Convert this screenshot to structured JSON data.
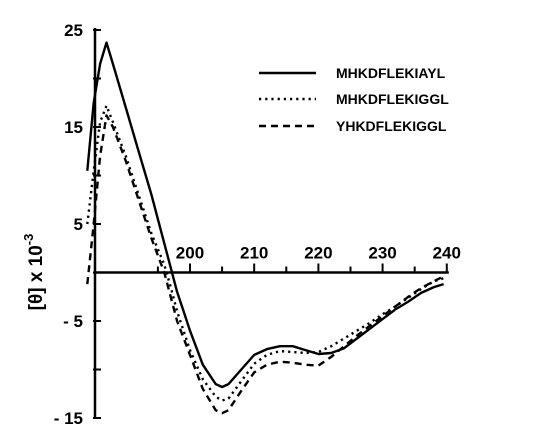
{
  "chart_data": {
    "type": "line",
    "title": "",
    "xlabel": "",
    "ylabel": "[θ] x 10",
    "ylabel_exponent": "-3",
    "xlim": [
      183,
      240
    ],
    "ylim": [
      -15,
      25
    ],
    "x_ticks": [
      200,
      210,
      220,
      230,
      240
    ],
    "x_tick_labels": [
      "200",
      "210",
      "220",
      "230",
      "240"
    ],
    "y_ticks": [
      25,
      15,
      5,
      -5,
      -15
    ],
    "y_tick_labels": [
      "25",
      "15",
      "5",
      "- 5",
      "- 15"
    ],
    "grid": false,
    "legend_position": "top-right",
    "series": [
      {
        "name": "MHKDFLEKIAYL",
        "style": "solid",
        "color": "#000000",
        "points": [
          [
            184.0,
            10.5
          ],
          [
            185.0,
            17.5
          ],
          [
            186.0,
            21.5
          ],
          [
            187.0,
            23.7
          ],
          [
            188.0,
            21.5
          ],
          [
            190.0,
            17.0
          ],
          [
            192.0,
            12.5
          ],
          [
            194.0,
            8.0
          ],
          [
            196.0,
            3.0
          ],
          [
            197.0,
            0.5
          ],
          [
            198.0,
            -2.0
          ],
          [
            199.0,
            -4.0
          ],
          [
            200.0,
            -6.0
          ],
          [
            202.0,
            -9.5
          ],
          [
            204.0,
            -11.5
          ],
          [
            205.0,
            -11.8
          ],
          [
            206.0,
            -11.5
          ],
          [
            208.0,
            -10.0
          ],
          [
            210.0,
            -8.5
          ],
          [
            212.0,
            -7.9
          ],
          [
            214.0,
            -7.6
          ],
          [
            216.0,
            -7.6
          ],
          [
            218.0,
            -8.0
          ],
          [
            220.0,
            -8.4
          ],
          [
            222.0,
            -8.3
          ],
          [
            224.0,
            -7.8
          ],
          [
            226.0,
            -6.8
          ],
          [
            228.0,
            -5.8
          ],
          [
            230.0,
            -4.8
          ],
          [
            232.0,
            -3.8
          ],
          [
            234.0,
            -3.0
          ],
          [
            236.0,
            -2.1
          ],
          [
            238.0,
            -1.5
          ],
          [
            239.5,
            -1.2
          ]
        ]
      },
      {
        "name": "MHKDFLEKIGGL",
        "style": "dotted",
        "color": "#000000",
        "points": [
          [
            184.0,
            5.0
          ],
          [
            185.0,
            10.5
          ],
          [
            186.0,
            15.5
          ],
          [
            187.0,
            17.2
          ],
          [
            188.0,
            15.5
          ],
          [
            190.0,
            12.0
          ],
          [
            192.0,
            8.0
          ],
          [
            194.0,
            4.0
          ],
          [
            196.0,
            0.8
          ],
          [
            197.0,
            -1.5
          ],
          [
            198.0,
            -4.0
          ],
          [
            200.0,
            -8.0
          ],
          [
            202.0,
            -11.0
          ],
          [
            204.0,
            -12.8
          ],
          [
            205.0,
            -13.2
          ],
          [
            206.0,
            -13.0
          ],
          [
            208.0,
            -11.2
          ],
          [
            210.0,
            -9.4
          ],
          [
            212.0,
            -8.5
          ],
          [
            214.0,
            -8.1
          ],
          [
            216.0,
            -8.2
          ],
          [
            218.0,
            -8.3
          ],
          [
            220.0,
            -8.2
          ],
          [
            222.0,
            -7.6
          ],
          [
            224.0,
            -6.8
          ],
          [
            226.0,
            -6.0
          ],
          [
            228.0,
            -5.2
          ],
          [
            230.0,
            -4.3
          ],
          [
            232.0,
            -3.5
          ],
          [
            234.0,
            -2.6
          ],
          [
            236.0,
            -1.7
          ],
          [
            238.0,
            -0.9
          ],
          [
            239.5,
            -0.6
          ]
        ]
      },
      {
        "name": "YHKDFLEKIGGL",
        "style": "dashed",
        "color": "#000000",
        "points": [
          [
            184.0,
            -1.2
          ],
          [
            185.0,
            5.0
          ],
          [
            186.0,
            12.0
          ],
          [
            187.0,
            16.2
          ],
          [
            188.0,
            15.0
          ],
          [
            190.0,
            11.5
          ],
          [
            192.0,
            7.5
          ],
          [
            194.0,
            3.5
          ],
          [
            196.0,
            0.0
          ],
          [
            197.0,
            -2.5
          ],
          [
            198.0,
            -5.0
          ],
          [
            200.0,
            -8.5
          ],
          [
            202.0,
            -12.0
          ],
          [
            204.0,
            -14.2
          ],
          [
            205.0,
            -14.5
          ],
          [
            206.0,
            -14.2
          ],
          [
            208.0,
            -12.2
          ],
          [
            210.0,
            -10.3
          ],
          [
            212.0,
            -9.5
          ],
          [
            214.0,
            -9.2
          ],
          [
            216.0,
            -9.3
          ],
          [
            218.0,
            -9.5
          ],
          [
            220.0,
            -9.6
          ],
          [
            222.0,
            -8.7
          ],
          [
            224.0,
            -7.6
          ],
          [
            226.0,
            -6.5
          ],
          [
            228.0,
            -5.5
          ],
          [
            230.0,
            -4.5
          ],
          [
            232.0,
            -3.5
          ],
          [
            234.0,
            -2.5
          ],
          [
            236.0,
            -1.6
          ],
          [
            238.0,
            -0.9
          ],
          [
            239.5,
            -0.4
          ]
        ]
      }
    ]
  }
}
